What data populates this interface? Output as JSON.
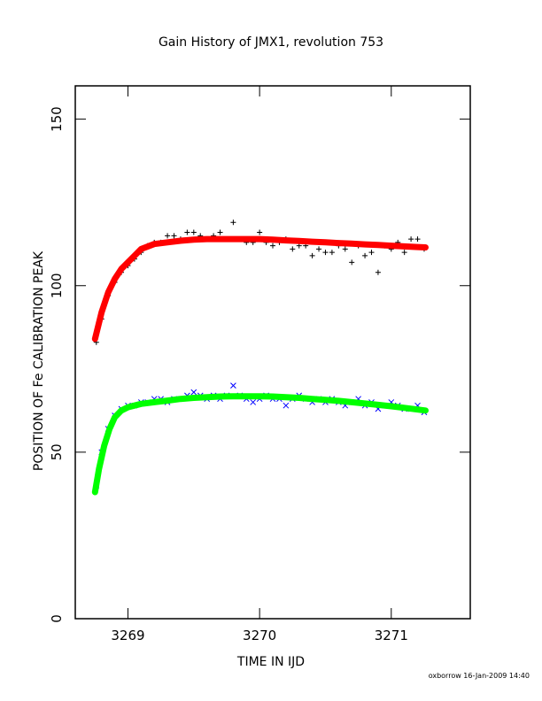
{
  "chart_data": {
    "type": "scatter",
    "title": "Gain History of JMX1, revolution 753",
    "xlabel": "TIME IN IJD",
    "ylabel": "POSITION OF Fe CALIBRATION PEAK",
    "xlim": [
      3268.6,
      3271.6
    ],
    "ylim": [
      0,
      160
    ],
    "xticks": [
      3269,
      3270,
      3271
    ],
    "yticks": [
      0,
      50,
      100,
      150
    ],
    "grid": false,
    "series": [
      {
        "marker": "plus",
        "color": "#000000",
        "x": [
          3268.76,
          3268.8,
          3268.85,
          3268.9,
          3268.95,
          3269.0,
          3269.05,
          3269.1,
          3269.15,
          3269.2,
          3269.25,
          3269.3,
          3269.35,
          3269.4,
          3269.45,
          3269.5,
          3269.55,
          3269.6,
          3269.65,
          3269.7,
          3269.75,
          3269.8,
          3269.85,
          3269.9,
          3269.95,
          3270.0,
          3270.05,
          3270.1,
          3270.15,
          3270.2,
          3270.25,
          3270.3,
          3270.35,
          3270.4,
          3270.45,
          3270.5,
          3270.55,
          3270.6,
          3270.65,
          3270.7,
          3270.75,
          3270.8,
          3270.85,
          3270.9,
          3270.95,
          3271.0,
          3271.05,
          3271.1,
          3271.15,
          3271.2,
          3271.25
        ],
        "y": [
          83,
          90,
          97,
          101,
          104,
          106,
          108,
          110,
          112,
          113,
          113,
          115,
          115,
          114,
          116,
          116,
          115,
          114,
          115,
          116,
          114,
          119,
          114,
          113,
          113,
          116,
          113,
          112,
          113,
          114,
          111,
          112,
          112,
          109,
          111,
          110,
          110,
          112,
          111,
          107,
          112,
          109,
          110,
          104,
          112,
          111,
          113,
          110,
          114,
          114,
          111
        ]
      },
      {
        "marker": "line",
        "color": "#ff0000",
        "x": [
          3268.75,
          3268.8,
          3268.85,
          3268.9,
          3268.95,
          3269.0,
          3269.05,
          3269.1,
          3269.2,
          3269.3,
          3269.4,
          3269.5,
          3269.6,
          3269.7,
          3269.8,
          3269.9,
          3270.0,
          3270.1,
          3270.2,
          3270.3,
          3270.4,
          3270.5,
          3270.6,
          3270.7,
          3270.8,
          3270.9,
          3271.0,
          3271.1,
          3271.2,
          3271.26
        ],
        "y": [
          84,
          92,
          98,
          102,
          105,
          107,
          109,
          111,
          112.5,
          113,
          113.5,
          113.8,
          114,
          114,
          114,
          114,
          114,
          113.8,
          113.6,
          113.4,
          113.2,
          113,
          112.8,
          112.6,
          112.4,
          112.2,
          112,
          111.8,
          111.6,
          111.5
        ]
      },
      {
        "marker": "x",
        "color": "#0000ff",
        "x": [
          3268.76,
          3268.8,
          3268.85,
          3268.9,
          3268.95,
          3269.0,
          3269.05,
          3269.1,
          3269.15,
          3269.2,
          3269.25,
          3269.3,
          3269.35,
          3269.4,
          3269.45,
          3269.5,
          3269.55,
          3269.6,
          3269.65,
          3269.7,
          3269.75,
          3269.8,
          3269.85,
          3269.9,
          3269.95,
          3270.0,
          3270.05,
          3270.1,
          3270.15,
          3270.2,
          3270.25,
          3270.3,
          3270.35,
          3270.4,
          3270.45,
          3270.5,
          3270.55,
          3270.6,
          3270.65,
          3270.7,
          3270.75,
          3270.8,
          3270.85,
          3270.9,
          3270.95,
          3271.0,
          3271.05,
          3271.1,
          3271.15,
          3271.2,
          3271.25
        ],
        "y": [
          40,
          50,
          57,
          61,
          63,
          64,
          64,
          65,
          65,
          66,
          66,
          65,
          66,
          66,
          67,
          68,
          67,
          66,
          67,
          66,
          67,
          70,
          67,
          66,
          65,
          66,
          67,
          66,
          66,
          64,
          66,
          67,
          66,
          65,
          66,
          65,
          66,
          65,
          64,
          65,
          66,
          64,
          65,
          63,
          64,
          65,
          64,
          63,
          63,
          64,
          62
        ]
      },
      {
        "marker": "line",
        "color": "#00ff00",
        "x": [
          3268.75,
          3268.78,
          3268.82,
          3268.86,
          3268.9,
          3268.95,
          3269.0,
          3269.05,
          3269.1,
          3269.2,
          3269.3,
          3269.4,
          3269.5,
          3269.6,
          3269.7,
          3269.8,
          3269.9,
          3270.0,
          3270.1,
          3270.2,
          3270.3,
          3270.4,
          3270.5,
          3270.6,
          3270.7,
          3270.8,
          3270.9,
          3271.0,
          3271.1,
          3271.2,
          3271.26
        ],
        "y": [
          38,
          45,
          52,
          57,
          60.5,
          62.5,
          63.5,
          64,
          64.5,
          65,
          65.5,
          66,
          66.3,
          66.5,
          66.7,
          66.8,
          66.8,
          66.8,
          66.7,
          66.5,
          66.3,
          66,
          65.7,
          65.4,
          65,
          64.6,
          64.2,
          63.8,
          63.3,
          62.8,
          62.5
        ]
      }
    ]
  },
  "footer": "oxborrow 16-Jan-2009 14:40"
}
